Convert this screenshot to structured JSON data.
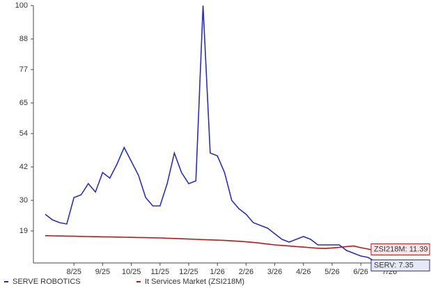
{
  "chart_data": {
    "type": "line",
    "categories": [
      null,
      null,
      null,
      null,
      "8/25",
      null,
      null,
      null,
      "9/25",
      null,
      null,
      null,
      "10/25",
      null,
      null,
      null,
      "11/25",
      null,
      null,
      null,
      "12/25",
      null,
      null,
      null,
      "1/26",
      null,
      null,
      null,
      "2/26",
      null,
      null,
      null,
      "3/26",
      null,
      null,
      null,
      "4/26",
      null,
      null,
      null,
      "5/26",
      null,
      null,
      null,
      "6/26",
      null,
      null,
      null,
      "7/26"
    ],
    "series": [
      {
        "name": "SERVE ROBOTICS",
        "color": "#2b2fb0",
        "values": [
          25,
          23,
          22,
          21.5,
          31,
          32,
          36,
          33,
          40,
          38,
          43,
          49,
          44,
          39,
          31,
          28,
          28,
          36,
          47,
          40,
          36,
          37,
          100,
          47,
          46,
          40,
          30,
          27,
          25,
          22,
          21,
          20,
          18,
          16,
          15,
          16,
          17,
          16,
          14,
          14,
          14,
          14,
          12,
          11,
          10,
          9.5,
          8,
          7.35,
          null
        ]
      },
      {
        "name": "It Services Market (ZSI218M)",
        "color": "#b01c1c",
        "values": [
          17.3,
          17.25,
          17.2,
          17.15,
          17.1,
          17.05,
          17.0,
          16.95,
          16.9,
          16.85,
          16.8,
          16.75,
          16.7,
          16.65,
          16.6,
          16.55,
          16.5,
          16.4,
          16.3,
          16.2,
          16.1,
          16.0,
          15.9,
          15.8,
          15.7,
          15.6,
          15.45,
          15.3,
          15.1,
          14.9,
          14.6,
          14.3,
          14.0,
          13.8,
          13.6,
          13.4,
          13.2,
          13.0,
          12.8,
          12.7,
          12.9,
          13.1,
          13.4,
          13.6,
          13.0,
          12.5,
          12.0,
          11.39,
          null
        ]
      }
    ],
    "annotations": [
      "ZSI218M: 11.39",
      "SERV: 7.35"
    ],
    "ylim": [
      7.5,
      100
    ],
    "yticks": [
      19,
      30,
      42,
      54,
      65,
      77,
      88,
      100
    ]
  }
}
